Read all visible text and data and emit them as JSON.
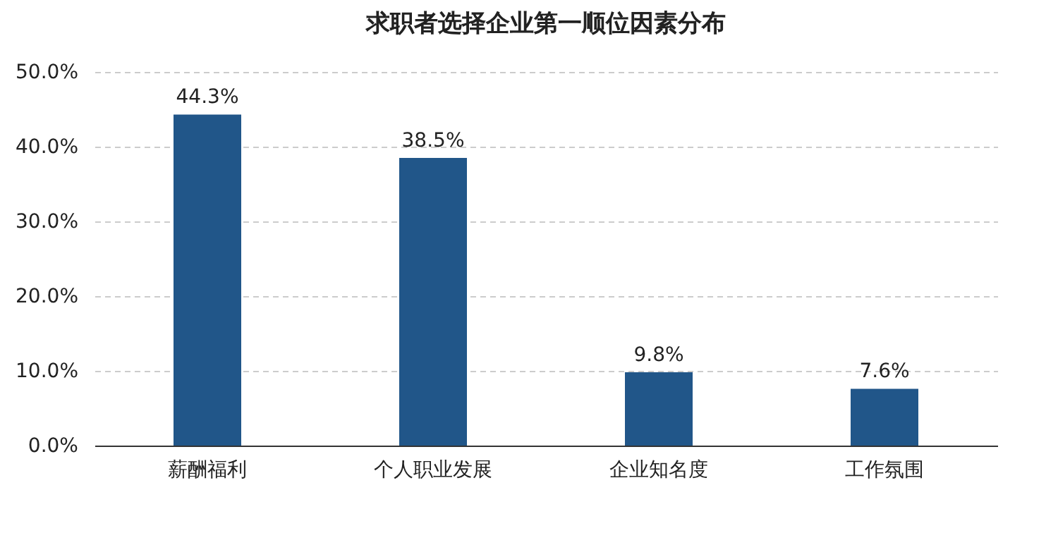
{
  "chart_data": {
    "type": "bar",
    "title": "求职者选择企业第一顺位因素分布",
    "categories": [
      "薪酬福利",
      "个人职业发展",
      "企业知名度",
      "工作氛围"
    ],
    "values": [
      44.3,
      38.5,
      9.8,
      7.6
    ],
    "color": "#215689",
    "ylim": [
      0,
      50
    ],
    "yticks": [
      {
        "value": 0,
        "label": "0.0%"
      },
      {
        "value": 10,
        "label": "10.0%"
      },
      {
        "value": 20,
        "label": "20.0%"
      },
      {
        "value": 30,
        "label": "30.0%"
      },
      {
        "value": 40,
        "label": "40.0%"
      },
      {
        "value": 50,
        "label": "50.0%"
      }
    ],
    "grid": "y",
    "line_style": "dashed",
    "value_labels": [
      "44.3%",
      "38.5%",
      "9.8%",
      "7.6%"
    ]
  }
}
